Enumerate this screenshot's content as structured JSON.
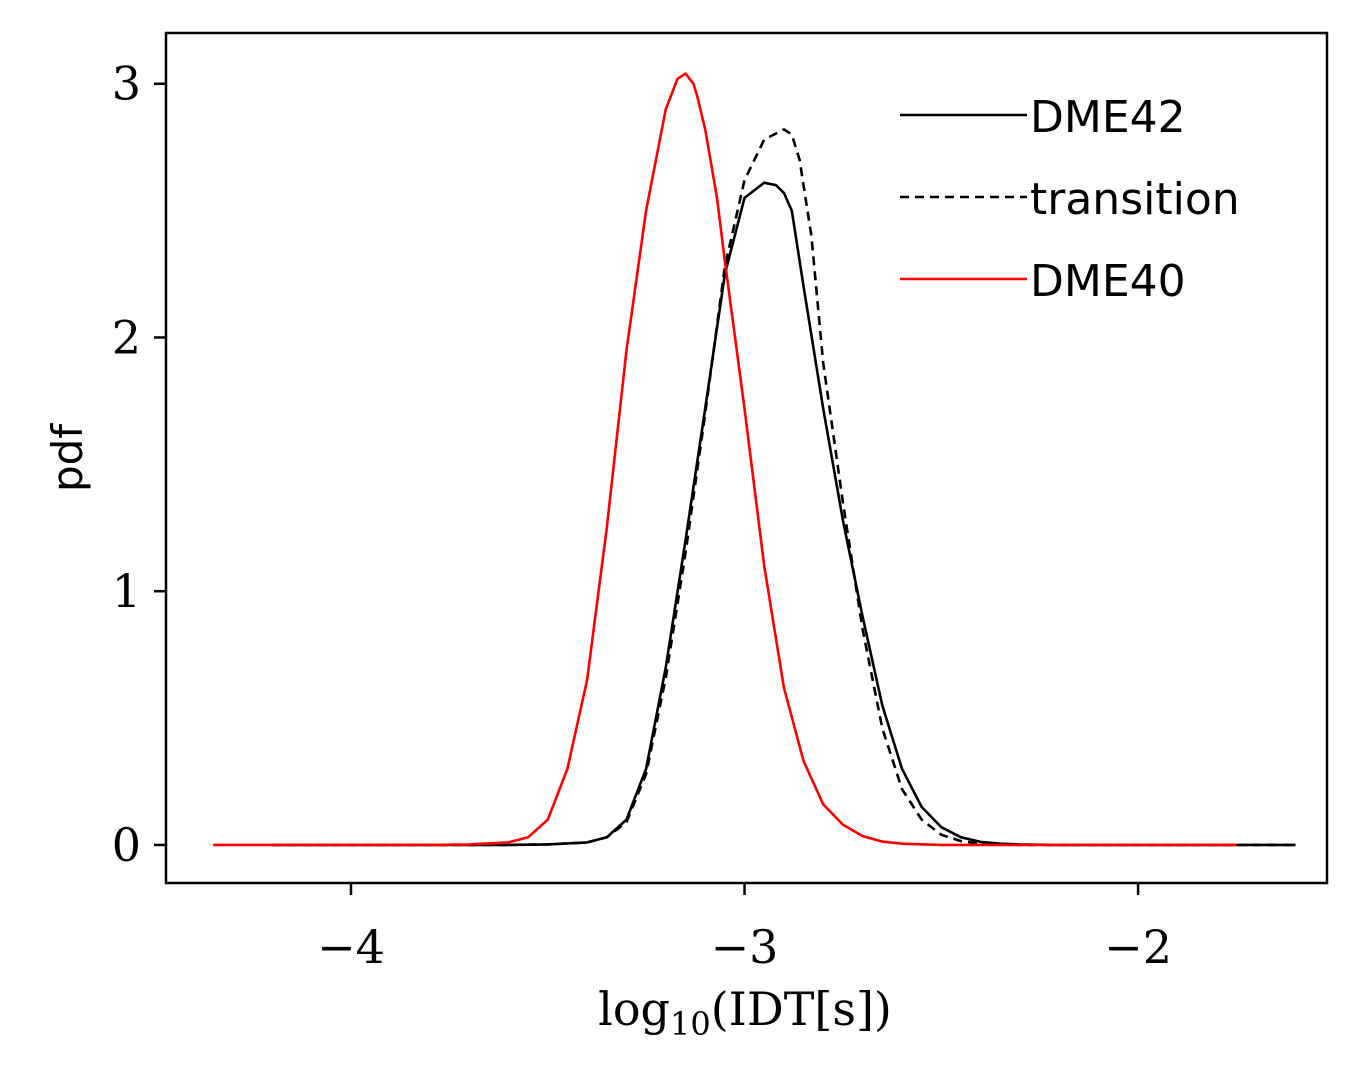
{
  "chart_data": {
    "type": "line",
    "xlabel_base": "log",
    "xlabel_sub": "10",
    "xlabel_arg": "(IDT[s])",
    "ylabel": "pdf",
    "xlim": [
      -4.47,
      -1.52
    ],
    "ylim": [
      -0.15,
      3.2
    ],
    "xticks": [
      -4,
      -3,
      -2
    ],
    "xtick_labels": [
      "−4",
      "−3",
      "−2"
    ],
    "yticks": [
      0,
      1,
      2,
      3
    ],
    "ytick_labels": [
      "0",
      "1",
      "2",
      "3"
    ],
    "grid": false,
    "legend_position": "top-right",
    "series": [
      {
        "name": "DME42",
        "color": "#000000",
        "dash": "solid",
        "x": [
          -4.2,
          -3.6,
          -3.5,
          -3.4,
          -3.35,
          -3.3,
          -3.25,
          -3.2,
          -3.15,
          -3.1,
          -3.05,
          -3.0,
          -2.95,
          -2.92,
          -2.9,
          -2.88,
          -2.85,
          -2.8,
          -2.75,
          -2.7,
          -2.65,
          -2.6,
          -2.55,
          -2.5,
          -2.45,
          -2.4,
          -2.35,
          -2.3,
          -2.2,
          -1.9,
          -1.6
        ],
        "y": [
          0,
          0,
          0.002,
          0.01,
          0.03,
          0.1,
          0.3,
          0.7,
          1.2,
          1.72,
          2.25,
          2.55,
          2.61,
          2.6,
          2.57,
          2.5,
          2.2,
          1.72,
          1.28,
          0.9,
          0.55,
          0.3,
          0.15,
          0.07,
          0.03,
          0.012,
          0.005,
          0.002,
          0,
          0,
          0
        ]
      },
      {
        "name": "transition",
        "color": "#000000",
        "dash": "dashed",
        "x": [
          -4.2,
          -3.6,
          -3.5,
          -3.4,
          -3.35,
          -3.3,
          -3.25,
          -3.2,
          -3.15,
          -3.1,
          -3.05,
          -3.0,
          -2.95,
          -2.9,
          -2.88,
          -2.86,
          -2.83,
          -2.8,
          -2.75,
          -2.7,
          -2.65,
          -2.6,
          -2.55,
          -2.5,
          -2.45,
          -2.4,
          -2.35,
          -2.3,
          -2.2,
          -1.9,
          -1.6
        ],
        "y": [
          0,
          0,
          0.002,
          0.01,
          0.03,
          0.09,
          0.28,
          0.66,
          1.15,
          1.7,
          2.28,
          2.62,
          2.78,
          2.82,
          2.8,
          2.7,
          2.4,
          1.9,
          1.35,
          0.85,
          0.46,
          0.22,
          0.1,
          0.04,
          0.015,
          0.005,
          0.002,
          0,
          0,
          0,
          0
        ]
      },
      {
        "name": "DME40",
        "color": "#ff0000",
        "dash": "solid",
        "x": [
          -4.35,
          -3.8,
          -3.7,
          -3.6,
          -3.55,
          -3.5,
          -3.45,
          -3.4,
          -3.35,
          -3.3,
          -3.25,
          -3.2,
          -3.17,
          -3.15,
          -3.13,
          -3.12,
          -3.1,
          -3.07,
          -3.05,
          -3.0,
          -2.95,
          -2.9,
          -2.85,
          -2.8,
          -2.75,
          -2.7,
          -2.65,
          -2.6,
          -2.5,
          -2.3,
          -1.75
        ],
        "y": [
          0,
          0,
          0.002,
          0.01,
          0.03,
          0.1,
          0.3,
          0.65,
          1.25,
          1.95,
          2.5,
          2.9,
          3.02,
          3.04,
          3.0,
          2.95,
          2.82,
          2.55,
          2.3,
          1.72,
          1.1,
          0.62,
          0.33,
          0.16,
          0.08,
          0.035,
          0.013,
          0.005,
          0,
          0,
          0
        ]
      }
    ]
  }
}
